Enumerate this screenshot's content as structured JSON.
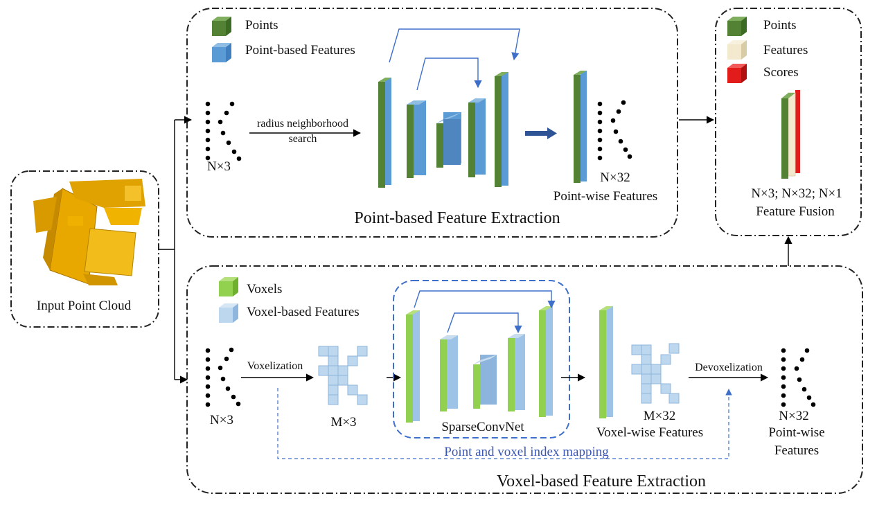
{
  "input_panel": {
    "label": "Input Point Cloud"
  },
  "point_branch": {
    "title": "Point-based Feature Extraction",
    "legend": [
      {
        "label": "Points",
        "color": "#548235"
      },
      {
        "label": "Point-based Features",
        "color": "#5b9bd5"
      }
    ],
    "input_label": "N×3",
    "search_label_line1": "radius neighborhood",
    "search_label_line2": "search",
    "output_size": "N×32",
    "output_label": "Point-wise Features"
  },
  "fusion_panel": {
    "legend": [
      {
        "label": "Points",
        "color": "#548235"
      },
      {
        "label": "Features",
        "color": "#f2e9cf"
      },
      {
        "label": "Scores",
        "color": "#e21b1b"
      }
    ],
    "sizes": "N×3; N×32; N×1",
    "title": "Feature Fusion"
  },
  "voxel_branch": {
    "title": "Voxel-based Feature Extraction",
    "legend": [
      {
        "label": "Voxels",
        "color": "#92d050"
      },
      {
        "label": "Voxel-based Features",
        "color": "#bdd7ee"
      }
    ],
    "input_label": "N×3",
    "voxelization_label": "Voxelization",
    "voxel_grid_size": "M×3",
    "sparse_net_label": "SparseConvNet",
    "voxelwise_size": "M×32",
    "voxelwise_label": "Voxel-wise Features",
    "devoxelization_label": "Devoxelization",
    "output_size": "N×32",
    "output_label_line1": "Point-wise",
    "output_label_line2": "Features",
    "mapping_label": "Point and voxel index mapping"
  }
}
